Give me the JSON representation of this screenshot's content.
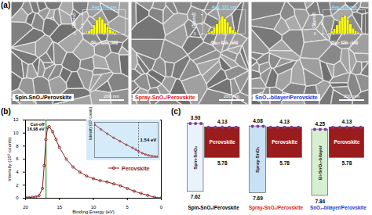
{
  "panel_labels": [
    "(a)",
    "(b)",
    "(c)"
  ],
  "sem_images": [
    {
      "label": "Spin-SnO₂/Perovskite",
      "color": "#000000",
      "scale_bar": "200 nm",
      "chart_data": {
        "type": "histogram",
        "title": "Avg. 108 nm",
        "xlabel": "Grain Size (nm)",
        "ylabel": "Counts",
        "bins": [
          50,
          60,
          70,
          80,
          90,
          100,
          110,
          120,
          130,
          140,
          150,
          160,
          170,
          180,
          190
        ],
        "values": [
          2,
          5,
          10,
          18,
          28,
          35,
          30,
          22,
          15,
          9,
          5,
          3,
          1,
          1
        ],
        "color": "#ffff00",
        "xlim": [
          40,
          200
        ],
        "xticks": [
          80,
          120,
          160
        ],
        "ylim": [
          0,
          50
        ],
        "yticks": [
          0,
          20,
          40
        ]
      }
    },
    {
      "label": "Spray-SnO₂/Perovskite",
      "color": "#e0201b",
      "scale_bar": "200 nm",
      "chart_data": {
        "type": "histogram",
        "title": "Avg. 121 nm",
        "xlabel": "Grain Size (nm)",
        "ylabel": "Counts",
        "bins": [
          50,
          60,
          70,
          80,
          90,
          100,
          110,
          120,
          130,
          140,
          150,
          160,
          170,
          180,
          190
        ],
        "values": [
          1,
          3,
          6,
          12,
          20,
          28,
          36,
          31,
          24,
          15,
          8,
          4,
          2,
          1
        ],
        "color": "#ffff00",
        "xlim": [
          40,
          200
        ],
        "xticks": [
          80,
          120,
          160
        ],
        "ylim": [
          0,
          50
        ],
        "yticks": [
          0,
          20,
          40
        ]
      }
    },
    {
      "label": "SnO₂-bilayer/Perovskite",
      "color": "#1a3ccf",
      "scale_bar": "200 nm",
      "chart_data": {
        "type": "histogram",
        "title": "Avg. 129 nm",
        "xlabel": "Grain Size (nm)",
        "ylabel": "Counts",
        "bins": [
          50,
          60,
          70,
          80,
          90,
          100,
          110,
          120,
          130,
          140,
          150,
          160,
          170,
          180,
          190
        ],
        "values": [
          1,
          2,
          5,
          10,
          18,
          27,
          34,
          38,
          30,
          20,
          11,
          5,
          2,
          1
        ],
        "color": "#ffff00",
        "xlim": [
          40,
          200
        ],
        "xticks": [
          80,
          120,
          160
        ],
        "ylim": [
          0,
          50
        ],
        "yticks": [
          0,
          20,
          40
        ]
      }
    }
  ],
  "chart_data": {
    "type": "line",
    "xlabel": "Binding Energy (eV)",
    "ylabel": "Intensity (10⁵ counts)",
    "x": [
      20,
      19.5,
      19,
      18.5,
      18,
      17.5,
      17.25,
      17,
      16.75,
      16.5,
      16,
      15.5,
      15,
      14,
      13,
      12,
      11,
      10,
      9,
      8,
      7,
      6,
      5,
      4,
      3,
      2,
      1,
      0
    ],
    "series": [
      {
        "name": "Perovskite",
        "color": "#8b1a1a",
        "marker": "circle",
        "values": [
          0.1,
          0.1,
          0.15,
          0.2,
          0.4,
          1.5,
          5,
          9,
          10.8,
          11,
          10.2,
          9,
          7.8,
          6,
          4.8,
          4,
          3.4,
          3,
          2.7,
          2.5,
          2.2,
          1.9,
          1.5,
          1.08,
          0.74,
          0.44,
          0.14,
          0.04
        ]
      }
    ],
    "xlim": [
      20,
      0
    ],
    "xticks": [
      20,
      15,
      10,
      5,
      0
    ],
    "ylim": [
      0,
      12
    ],
    "yticks": [
      0,
      2,
      4,
      6,
      8,
      10,
      12
    ],
    "legend": "bottom right",
    "annotations": [
      {
        "title": "Cut-off",
        "value": 16.98,
        "label": "16.98 eV",
        "color": "#2ca02c"
      }
    ],
    "inset": {
      "type": "line",
      "ylabel": "Intensity (10³ counts)",
      "x": [
        5,
        4.5,
        4,
        3.5,
        3,
        2.5,
        2,
        1.75,
        1.54,
        1.25,
        1,
        0.75,
        0.5,
        0.25,
        0
      ],
      "values": [
        150,
        128,
        108,
        90,
        74,
        58,
        44,
        36,
        28,
        20,
        14,
        10,
        7,
        5,
        4
      ],
      "color": "#8b1a1a",
      "xlim": [
        5,
        0
      ],
      "ylim": [
        0,
        160
      ],
      "tick_labels": false,
      "annotations": [
        {
          "value": 1.54,
          "label": "1.54 eV"
        }
      ]
    }
  },
  "energy_diagram": {
    "groups": [
      {
        "label": "Spin-SnO₂/Perovskite",
        "color": "#000000",
        "layers": [
          {
            "name": "Spin-SnO₂",
            "cb": 3.93,
            "vb": 7.62,
            "color": "#eaf2fb"
          },
          {
            "name": "Perovskite",
            "cb": 4.13,
            "vb": 5.78,
            "color": "#9b1c1c"
          }
        ]
      },
      {
        "label": "Spray-SnO₂/Perovskite",
        "color": "#e0201b",
        "layers": [
          {
            "name": "Spray-SnO₂",
            "cb": 4.08,
            "vb": 7.69,
            "color": "#c9e1f5"
          },
          {
            "name": "Perovskite",
            "cb": 4.13,
            "vb": 5.78,
            "color": "#9b1c1c"
          }
        ]
      },
      {
        "label": "SnO₂-bilayer/Perovskite",
        "color": "#1a3ccf",
        "layers": [
          {
            "name": "Bi-SnO₂-bilayer",
            "cb": 4.25,
            "vb": 7.84,
            "color": "#d6efd0"
          },
          {
            "name": "Perovskite",
            "cb": 4.13,
            "vb": 5.78,
            "color": "#9b1c1c"
          }
        ]
      }
    ]
  }
}
